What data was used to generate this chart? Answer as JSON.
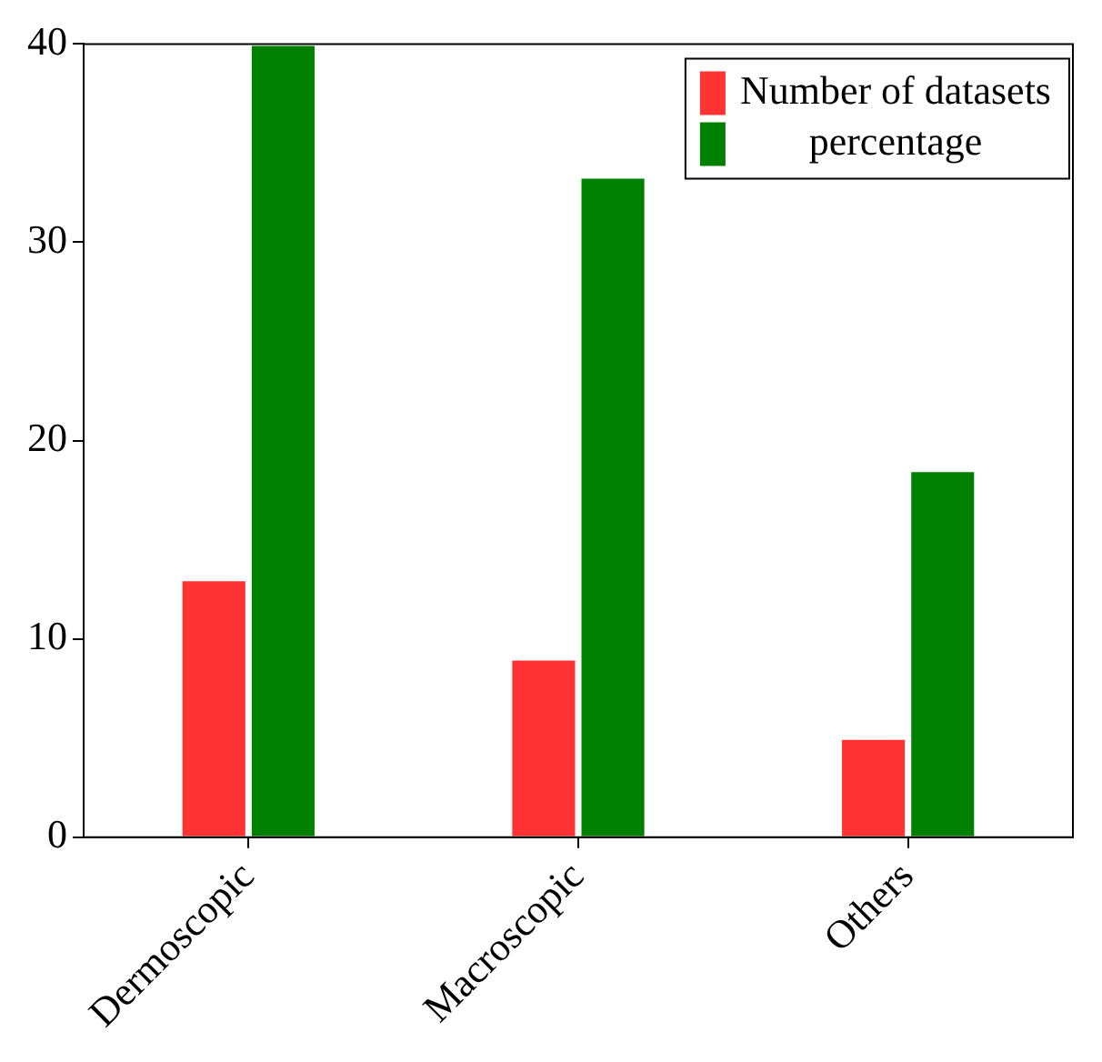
{
  "chart_data": {
    "type": "bar",
    "categories": [
      "Dermoscopic",
      "Macroscopic",
      "Others"
    ],
    "series": [
      {
        "name": "Number of datasets",
        "color": "#ff3333",
        "values": [
          13,
          9,
          5
        ]
      },
      {
        "name": "percentage",
        "color": "#008000",
        "values": [
          40,
          33.3,
          18.5
        ]
      }
    ],
    "ylim": [
      0,
      40
    ],
    "yticks": [
      0,
      10,
      20,
      30,
      40
    ],
    "grid": false,
    "legend": "top right"
  }
}
